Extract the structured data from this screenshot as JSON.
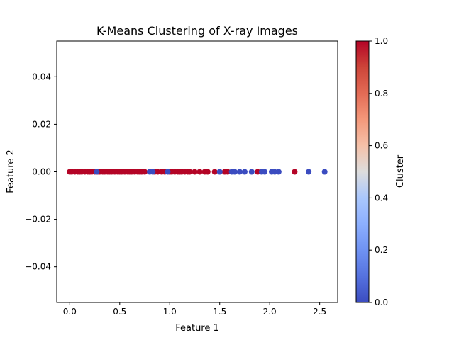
{
  "chart_data": {
    "type": "scatter",
    "title": "K-Means Clustering of X-ray Images",
    "xlabel": "Feature 1",
    "ylabel": "Feature 2",
    "xlim": [
      -0.13,
      2.68
    ],
    "ylim": [
      -0.055,
      0.055
    ],
    "xticks": [
      0.0,
      0.5,
      1.0,
      1.5,
      2.0,
      2.5
    ],
    "xtick_labels": [
      "0.0",
      "0.5",
      "1.0",
      "1.5",
      "2.0",
      "2.5"
    ],
    "yticks": [
      -0.04,
      -0.02,
      0.0,
      0.02,
      0.04
    ],
    "ytick_labels": [
      "−0.04",
      "−0.02",
      "0.00",
      "0.02",
      "0.04"
    ],
    "grid": false,
    "colormap": "coolwarm",
    "colorbar": {
      "label": "Cluster",
      "range": [
        0.0,
        1.0
      ],
      "ticks": [
        0.0,
        0.2,
        0.4,
        0.6,
        0.8,
        1.0
      ],
      "tick_labels": [
        "0.0",
        "0.2",
        "0.4",
        "0.6",
        "0.8",
        "1.0"
      ]
    },
    "series": [
      {
        "cluster": 1,
        "color": "#b40426",
        "x": [
          0.0,
          0.02,
          0.05,
          0.08,
          0.1,
          0.12,
          0.15,
          0.18,
          0.2,
          0.22,
          0.25,
          0.28,
          0.3,
          0.33,
          0.35,
          0.38,
          0.4,
          0.42,
          0.45,
          0.48,
          0.5,
          0.52,
          0.55,
          0.58,
          0.6,
          0.62,
          0.65,
          0.68,
          0.7,
          0.72,
          0.75,
          0.85,
          0.88,
          0.92,
          0.95,
          1.0,
          1.02,
          1.05,
          1.08,
          1.1,
          1.12,
          1.15,
          1.18,
          1.2,
          1.25,
          1.3,
          1.35,
          1.38,
          1.45,
          1.55,
          1.58,
          1.88,
          2.25
        ],
        "y": [
          0,
          0,
          0,
          0,
          0,
          0,
          0,
          0,
          0,
          0,
          0,
          0,
          0,
          0,
          0,
          0,
          0,
          0,
          0,
          0,
          0,
          0,
          0,
          0,
          0,
          0,
          0,
          0,
          0,
          0,
          0,
          0,
          0,
          0,
          0,
          0,
          0,
          0,
          0,
          0,
          0,
          0,
          0,
          0,
          0,
          0,
          0,
          0,
          0,
          0,
          0,
          0,
          0
        ]
      },
      {
        "cluster": 0,
        "color": "#3b4cc0",
        "x": [
          0.27,
          0.8,
          0.83,
          0.98,
          1.5,
          1.62,
          1.65,
          1.7,
          1.75,
          1.82,
          1.92,
          1.95,
          2.02,
          2.05,
          2.09,
          2.39,
          2.55
        ],
        "y": [
          0,
          0,
          0,
          0,
          0,
          0,
          0,
          0,
          0,
          0,
          0,
          0,
          0,
          0,
          0,
          0,
          0
        ]
      }
    ]
  }
}
